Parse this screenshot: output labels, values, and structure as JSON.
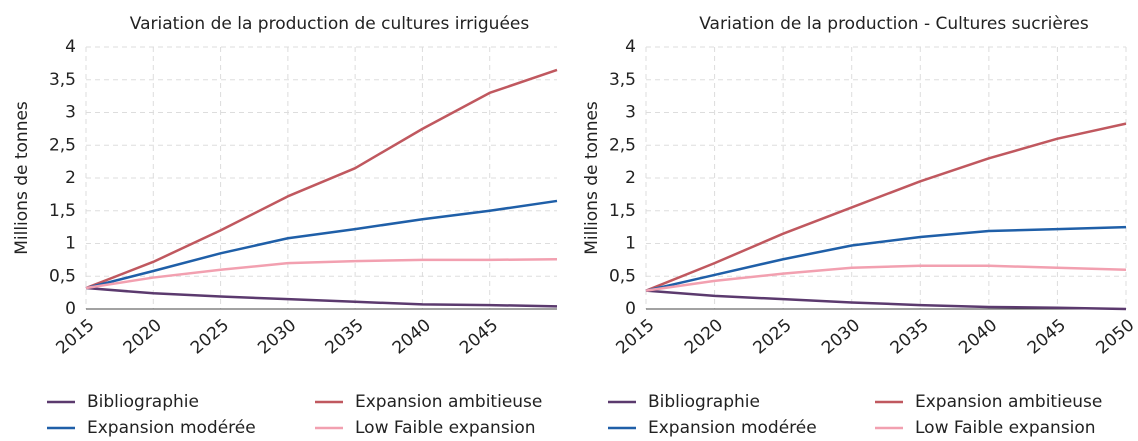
{
  "chart_data": [
    {
      "type": "line",
      "title": "Variation de la production de cultures irriguées",
      "ylabel": "Millions de tonnes",
      "x": [
        2015,
        2020,
        2025,
        2030,
        2035,
        2040,
        2045,
        2050
      ],
      "xlim": [
        2015,
        2050
      ],
      "xticks": [
        2015,
        2020,
        2025,
        2030,
        2035,
        2040,
        2045
      ],
      "ylim": [
        0,
        4
      ],
      "yticks": [
        0,
        {
          "value": 0.5,
          "label": "0,5"
        },
        1,
        {
          "value": 1.5,
          "label": "1,5"
        },
        2,
        {
          "value": 2.5,
          "label": "2,5"
        },
        3,
        {
          "value": 3.5,
          "label": "3,5"
        },
        4
      ],
      "grid": true,
      "series": [
        {
          "name": "Bibliographie",
          "color": "#5b3a6e",
          "values": [
            0.32,
            0.24,
            0.19,
            0.15,
            0.11,
            0.07,
            0.06,
            0.04
          ]
        },
        {
          "name": "Expansion ambitieuse",
          "color": "#c0585f",
          "values": [
            0.32,
            0.72,
            1.2,
            1.72,
            2.15,
            2.75,
            3.3,
            3.65
          ]
        },
        {
          "name": "Expansion modérée",
          "color": "#1f5fa8",
          "values": [
            0.32,
            0.58,
            0.85,
            1.08,
            1.22,
            1.37,
            1.5,
            1.65
          ]
        },
        {
          "name": "Low Faible expansion",
          "color": "#f2a0b0",
          "values": [
            0.32,
            0.48,
            0.6,
            0.7,
            0.73,
            0.75,
            0.75,
            0.76
          ]
        }
      ]
    },
    {
      "type": "line",
      "title": "Variation de la production - Cultures sucrières",
      "ylabel": "Millions de tonnes",
      "x": [
        2015,
        2020,
        2025,
        2030,
        2035,
        2040,
        2045,
        2050
      ],
      "xlim": [
        2015,
        2050
      ],
      "xticks": [
        2015,
        2020,
        2025,
        2030,
        2035,
        2040,
        2045,
        2050
      ],
      "ylim": [
        0,
        4
      ],
      "yticks": [
        0,
        {
          "value": 0.5,
          "label": "0,5"
        },
        1,
        {
          "value": 1.5,
          "label": "1,5"
        },
        2,
        {
          "value": 2.5,
          "label": "2,5"
        },
        3,
        {
          "value": 3.5,
          "label": "3,5"
        },
        4
      ],
      "grid": true,
      "series": [
        {
          "name": "Bibliographie",
          "color": "#5b3a6e",
          "values": [
            0.28,
            0.2,
            0.15,
            0.1,
            0.06,
            0.03,
            0.02,
            0.0
          ]
        },
        {
          "name": "Expansion ambitieuse",
          "color": "#c0585f",
          "values": [
            0.28,
            0.7,
            1.15,
            1.55,
            1.95,
            2.3,
            2.6,
            2.83
          ]
        },
        {
          "name": "Expansion modérée",
          "color": "#1f5fa8",
          "values": [
            0.28,
            0.52,
            0.76,
            0.97,
            1.1,
            1.19,
            1.22,
            1.25
          ]
        },
        {
          "name": "Low Faible expansion",
          "color": "#f2a0b0",
          "values": [
            0.28,
            0.43,
            0.54,
            0.63,
            0.66,
            0.66,
            0.63,
            0.6
          ]
        }
      ]
    }
  ]
}
